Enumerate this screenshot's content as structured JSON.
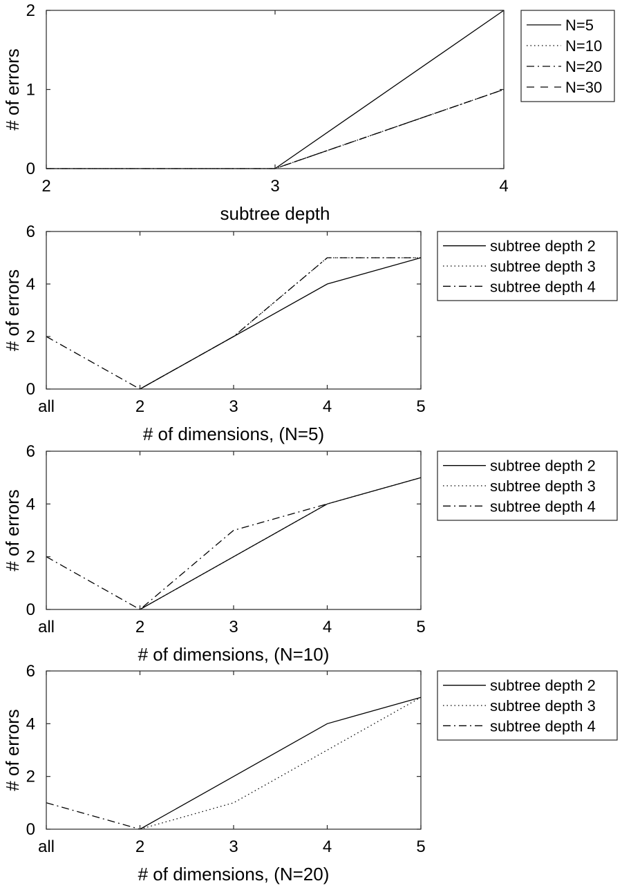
{
  "chart_data": [
    {
      "type": "line",
      "xlabel": "subtree depth",
      "ylabel": "# of errors",
      "x": [
        2,
        3,
        4
      ],
      "xticks": [
        "2",
        "3",
        "4"
      ],
      "ylim": [
        0,
        2
      ],
      "yticks": [
        "0",
        "1",
        "2"
      ],
      "legend_position": "outside-right",
      "series": [
        {
          "name": "N=5",
          "style": "solid",
          "values": [
            0,
            0,
            2
          ]
        },
        {
          "name": "N=10",
          "style": "dotted",
          "values": [
            0,
            0,
            1
          ]
        },
        {
          "name": "N=20",
          "style": "dashdot",
          "values": [
            0,
            0,
            1
          ]
        },
        {
          "name": "N=30",
          "style": "dashed",
          "values": [
            0,
            0,
            1
          ]
        }
      ]
    },
    {
      "type": "line",
      "xlabel": "# of dimensions, (N=5)",
      "ylabel": "# of errors",
      "categories": [
        "all",
        "2",
        "3",
        "4",
        "5"
      ],
      "ylim": [
        0,
        6
      ],
      "yticks": [
        "0",
        "2",
        "4",
        "6"
      ],
      "legend_position": "outside-right",
      "series": [
        {
          "name": "subtree depth 2",
          "style": "solid",
          "values": [
            null,
            0,
            2,
            4,
            5
          ]
        },
        {
          "name": "subtree depth 3",
          "style": "dotted",
          "values": [
            null,
            0,
            2,
            5,
            5
          ]
        },
        {
          "name": "subtree depth 4",
          "style": "dashdot",
          "values": [
            2,
            0,
            2,
            5,
            5
          ]
        }
      ]
    },
    {
      "type": "line",
      "xlabel": "# of dimensions, (N=10)",
      "ylabel": "# of errors",
      "categories": [
        "all",
        "2",
        "3",
        "4",
        "5"
      ],
      "ylim": [
        0,
        6
      ],
      "yticks": [
        "0",
        "2",
        "4",
        "6"
      ],
      "legend_position": "outside-right",
      "series": [
        {
          "name": "subtree depth 2",
          "style": "solid",
          "values": [
            null,
            0,
            2,
            4,
            5
          ]
        },
        {
          "name": "subtree depth 3",
          "style": "dotted",
          "values": [
            null,
            0,
            2,
            4,
            5
          ]
        },
        {
          "name": "subtree depth 4",
          "style": "dashdot",
          "values": [
            2,
            0,
            3,
            4,
            null
          ]
        }
      ]
    },
    {
      "type": "line",
      "xlabel": "# of dimensions, (N=20)",
      "ylabel": "# of errors",
      "categories": [
        "all",
        "2",
        "3",
        "4",
        "5"
      ],
      "ylim": [
        0,
        6
      ],
      "yticks": [
        "0",
        "2",
        "4",
        "6"
      ],
      "legend_position": "outside-right",
      "series": [
        {
          "name": "subtree depth 2",
          "style": "solid",
          "values": [
            null,
            0,
            2,
            4,
            5
          ]
        },
        {
          "name": "subtree depth 3",
          "style": "dotted",
          "values": [
            null,
            0,
            1,
            3,
            5
          ]
        },
        {
          "name": "subtree depth 4",
          "style": "dashdot",
          "values": [
            1,
            0,
            null,
            null,
            null
          ]
        }
      ]
    }
  ]
}
